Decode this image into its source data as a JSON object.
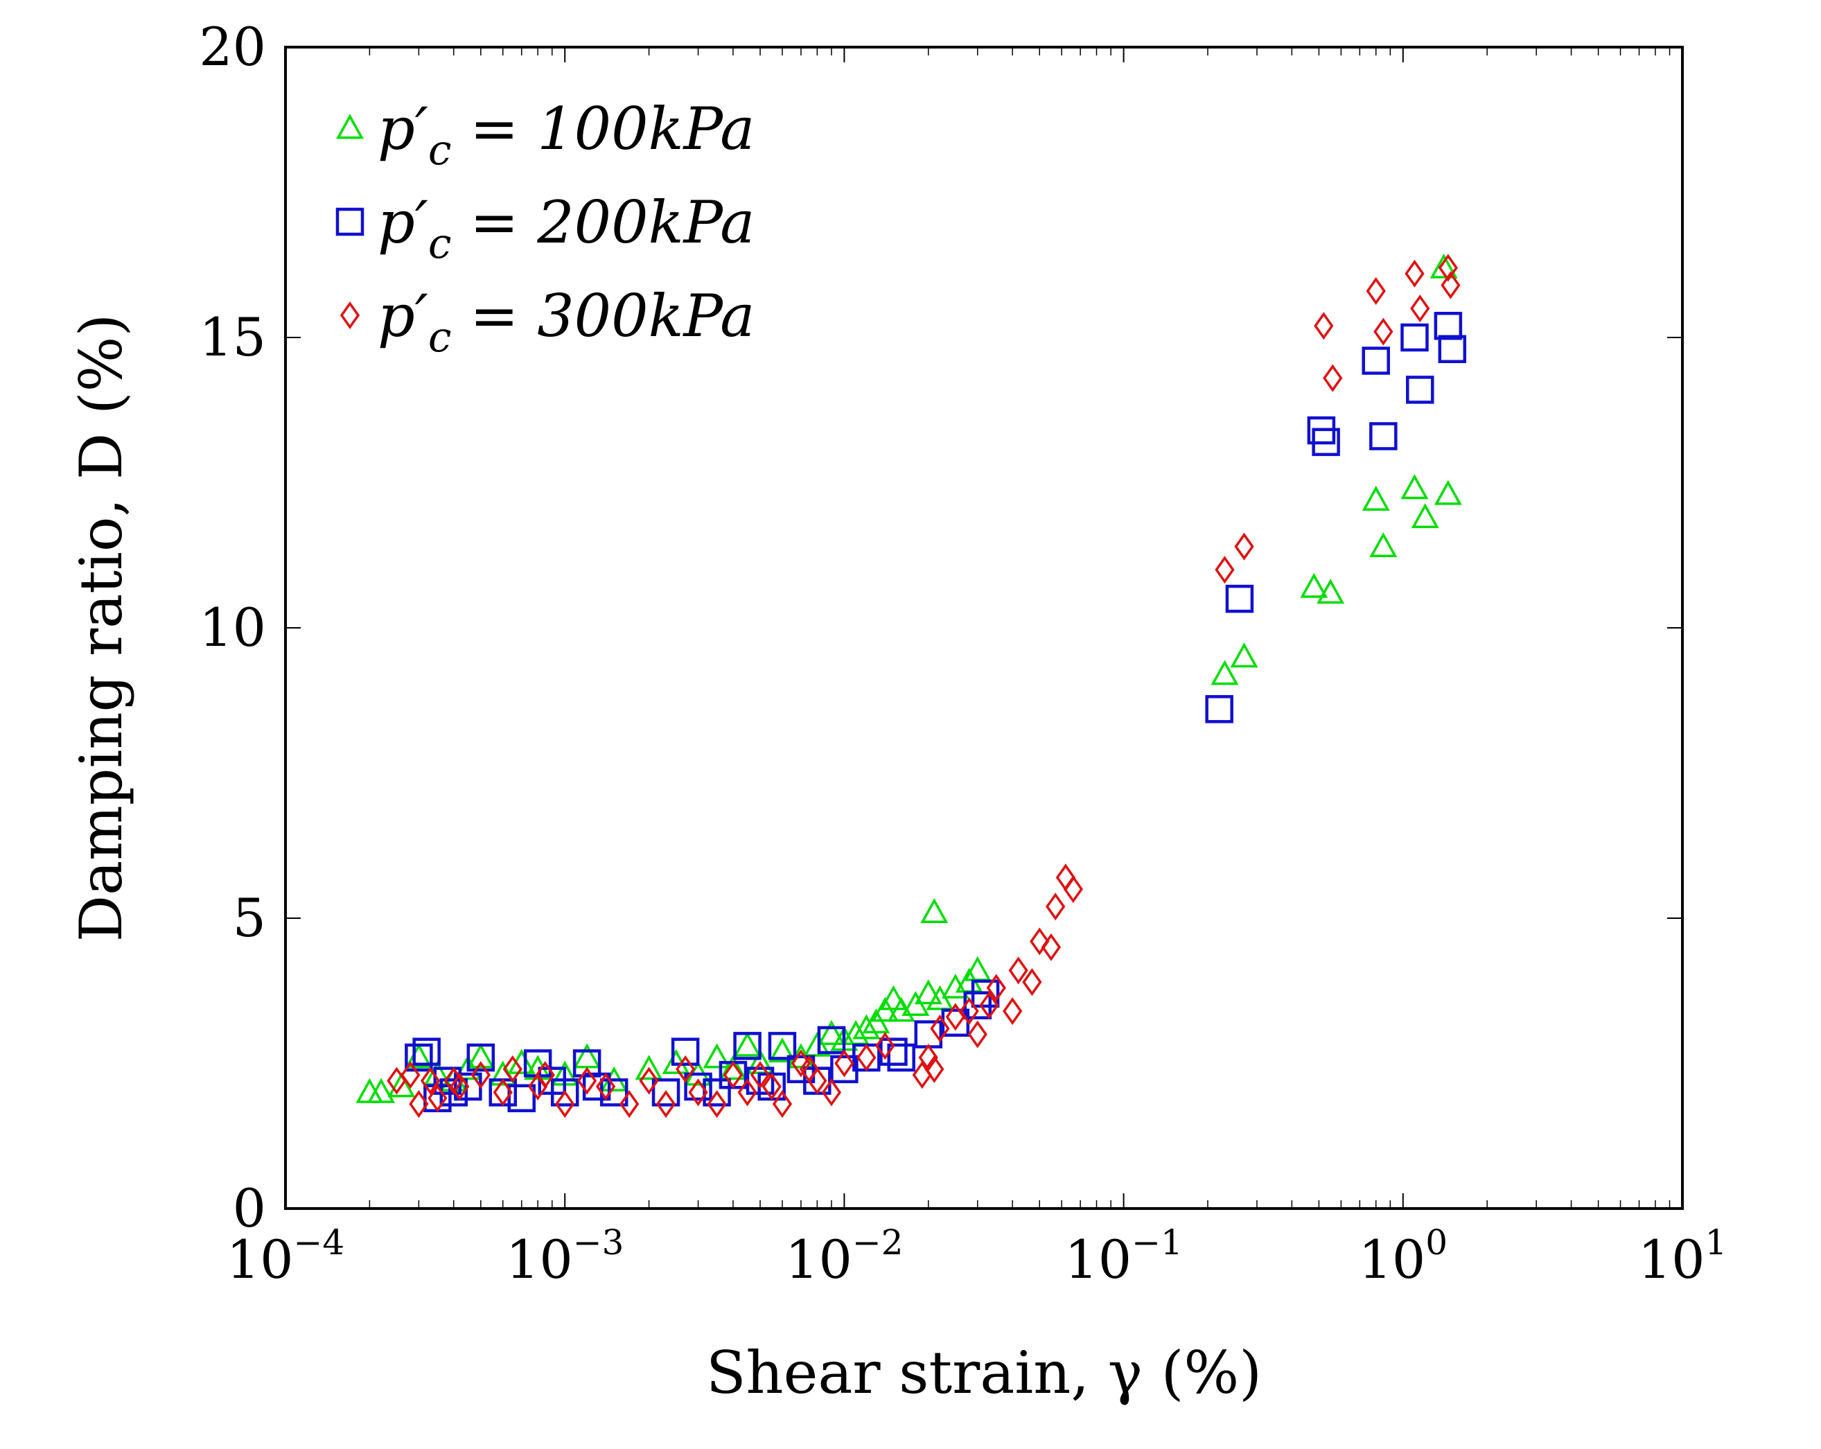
{
  "chart_data": {
    "type": "scatter",
    "title": "",
    "xlabel": "Shear strain, γ (%)",
    "ylabel": "Damping ratio, D (%)",
    "xscale": "log",
    "xlim": [
      0.0001,
      10
    ],
    "ylim": [
      0,
      20
    ],
    "x_ticks": [
      {
        "base": "10",
        "exp": "−4"
      },
      {
        "base": "10",
        "exp": "−3"
      },
      {
        "base": "10",
        "exp": "−2"
      },
      {
        "base": "10",
        "exp": "−1"
      },
      {
        "base": "10",
        "exp": "0"
      },
      {
        "base": "10",
        "exp": "1"
      }
    ],
    "y_ticks": [
      "0",
      "5",
      "10",
      "15",
      "20"
    ],
    "legend_position": "top-left",
    "series": [
      {
        "name": "p′c = 100kPa",
        "label_main": "p′",
        "label_sub": "c",
        "label_rest": " = 100kPa",
        "marker": "triangle",
        "color": "#00dd00",
        "points": [
          [
            0.0002,
            2.0
          ],
          [
            0.00022,
            2.0
          ],
          [
            0.00026,
            2.1
          ],
          [
            0.0003,
            2.6
          ],
          [
            0.00035,
            2.3
          ],
          [
            0.0004,
            2.2
          ],
          [
            0.00045,
            2.4
          ],
          [
            0.0005,
            2.6
          ],
          [
            0.0006,
            2.3
          ],
          [
            0.0007,
            2.5
          ],
          [
            0.0008,
            2.4
          ],
          [
            0.001,
            2.3
          ],
          [
            0.0012,
            2.6
          ],
          [
            0.0015,
            2.2
          ],
          [
            0.002,
            2.4
          ],
          [
            0.0025,
            2.5
          ],
          [
            0.003,
            2.3
          ],
          [
            0.0035,
            2.6
          ],
          [
            0.004,
            2.4
          ],
          [
            0.0045,
            2.8
          ],
          [
            0.005,
            2.5
          ],
          [
            0.006,
            2.7
          ],
          [
            0.007,
            2.6
          ],
          [
            0.008,
            2.8
          ],
          [
            0.009,
            3.0
          ],
          [
            0.01,
            2.9
          ],
          [
            0.011,
            3.0
          ],
          [
            0.012,
            3.1
          ],
          [
            0.013,
            3.2
          ],
          [
            0.014,
            3.4
          ],
          [
            0.015,
            3.6
          ],
          [
            0.016,
            3.4
          ],
          [
            0.018,
            3.5
          ],
          [
            0.02,
            3.7
          ],
          [
            0.021,
            5.1
          ],
          [
            0.022,
            3.6
          ],
          [
            0.025,
            3.8
          ],
          [
            0.028,
            3.9
          ],
          [
            0.03,
            4.1
          ],
          [
            0.23,
            9.2
          ],
          [
            0.27,
            9.5
          ],
          [
            0.48,
            10.7
          ],
          [
            0.55,
            10.6
          ],
          [
            0.8,
            12.2
          ],
          [
            0.85,
            11.4
          ],
          [
            1.1,
            12.4
          ],
          [
            1.2,
            11.9
          ],
          [
            1.45,
            12.3
          ],
          [
            1.4,
            16.2
          ]
        ]
      },
      {
        "name": "p′c = 200kPa",
        "label_main": "p′",
        "label_sub": "c",
        "label_rest": " = 200kPa",
        "marker": "square",
        "color": "#1010d0",
        "points": [
          [
            0.0003,
            2.6
          ],
          [
            0.00032,
            2.7
          ],
          [
            0.00035,
            1.9
          ],
          [
            0.00038,
            2.2
          ],
          [
            0.0004,
            2.0
          ],
          [
            0.00045,
            2.1
          ],
          [
            0.0005,
            2.6
          ],
          [
            0.0006,
            2.0
          ],
          [
            0.0007,
            1.9
          ],
          [
            0.0008,
            2.5
          ],
          [
            0.0009,
            2.2
          ],
          [
            0.001,
            2.0
          ],
          [
            0.0012,
            2.5
          ],
          [
            0.0013,
            2.1
          ],
          [
            0.0015,
            2.0
          ],
          [
            0.0023,
            2.0
          ],
          [
            0.0027,
            2.7
          ],
          [
            0.003,
            2.1
          ],
          [
            0.0035,
            2.0
          ],
          [
            0.004,
            2.3
          ],
          [
            0.0045,
            2.8
          ],
          [
            0.005,
            2.2
          ],
          [
            0.0055,
            2.1
          ],
          [
            0.006,
            2.8
          ],
          [
            0.007,
            2.4
          ],
          [
            0.008,
            2.2
          ],
          [
            0.009,
            2.9
          ],
          [
            0.01,
            2.4
          ],
          [
            0.012,
            2.6
          ],
          [
            0.015,
            2.7
          ],
          [
            0.016,
            2.6
          ],
          [
            0.02,
            3.0
          ],
          [
            0.025,
            3.2
          ],
          [
            0.03,
            3.5
          ],
          [
            0.032,
            3.7
          ],
          [
            0.22,
            8.6
          ],
          [
            0.26,
            10.5
          ],
          [
            0.51,
            13.4
          ],
          [
            0.53,
            13.2
          ],
          [
            0.8,
            14.6
          ],
          [
            0.85,
            13.3
          ],
          [
            1.1,
            15.0
          ],
          [
            1.15,
            14.1
          ],
          [
            1.45,
            15.2
          ],
          [
            1.5,
            14.8
          ]
        ]
      },
      {
        "name": "p′c = 300kPa",
        "label_main": "p′",
        "label_sub": "c",
        "label_rest": " = 300kPa",
        "marker": "diamond",
        "color": "#e01010",
        "points": [
          [
            0.00025,
            2.2
          ],
          [
            0.00028,
            2.3
          ],
          [
            0.0003,
            1.8
          ],
          [
            0.00033,
            2.2
          ],
          [
            0.00035,
            1.9
          ],
          [
            0.0004,
            2.2
          ],
          [
            0.00042,
            2.1
          ],
          [
            0.0005,
            2.3
          ],
          [
            0.0006,
            2.0
          ],
          [
            0.00065,
            2.4
          ],
          [
            0.0008,
            2.1
          ],
          [
            0.00085,
            2.3
          ],
          [
            0.001,
            1.8
          ],
          [
            0.0012,
            2.2
          ],
          [
            0.0014,
            2.1
          ],
          [
            0.0017,
            1.8
          ],
          [
            0.002,
            2.2
          ],
          [
            0.0023,
            1.8
          ],
          [
            0.0027,
            2.4
          ],
          [
            0.003,
            2.0
          ],
          [
            0.0035,
            1.8
          ],
          [
            0.004,
            2.3
          ],
          [
            0.0045,
            2.0
          ],
          [
            0.005,
            2.3
          ],
          [
            0.0055,
            2.1
          ],
          [
            0.006,
            1.8
          ],
          [
            0.007,
            2.5
          ],
          [
            0.0075,
            2.4
          ],
          [
            0.008,
            2.2
          ],
          [
            0.009,
            2.0
          ],
          [
            0.01,
            2.5
          ],
          [
            0.012,
            2.6
          ],
          [
            0.014,
            2.8
          ],
          [
            0.019,
            2.3
          ],
          [
            0.02,
            2.6
          ],
          [
            0.021,
            2.4
          ],
          [
            0.022,
            3.1
          ],
          [
            0.025,
            3.3
          ],
          [
            0.028,
            3.4
          ],
          [
            0.03,
            3.0
          ],
          [
            0.033,
            3.5
          ],
          [
            0.035,
            3.8
          ],
          [
            0.04,
            3.4
          ],
          [
            0.042,
            4.1
          ],
          [
            0.047,
            3.9
          ],
          [
            0.05,
            4.6
          ],
          [
            0.055,
            4.5
          ],
          [
            0.057,
            5.2
          ],
          [
            0.062,
            5.7
          ],
          [
            0.066,
            5.5
          ],
          [
            0.23,
            11.0
          ],
          [
            0.27,
            11.4
          ],
          [
            0.52,
            15.2
          ],
          [
            0.56,
            14.3
          ],
          [
            0.8,
            15.8
          ],
          [
            0.85,
            15.1
          ],
          [
            1.1,
            16.1
          ],
          [
            1.15,
            15.5
          ],
          [
            1.45,
            16.2
          ],
          [
            1.48,
            15.9
          ]
        ]
      }
    ]
  }
}
